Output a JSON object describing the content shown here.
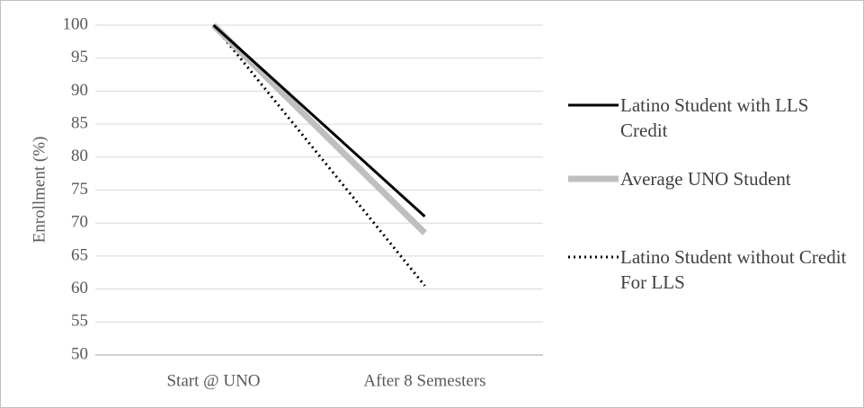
{
  "chart_data": {
    "type": "line",
    "y_label": "Enrollment (%)",
    "categories": [
      "Start @ UNO",
      "After 8 Semesters"
    ],
    "series": [
      {
        "name": "Latino Student with LLS Credit",
        "color": "#000000",
        "line_width": 3,
        "dashed": false,
        "values": [
          100,
          71
        ]
      },
      {
        "name": "Average UNO Student",
        "color": "#bfbfbf",
        "line_width": 7,
        "dashed": false,
        "values": [
          100,
          68.5
        ]
      },
      {
        "name": "Latino Student without Credit For LLS",
        "color": "#000000",
        "line_width": 3,
        "dashed": true,
        "values": [
          100,
          60.5
        ]
      }
    ],
    "ylim": [
      50,
      100
    ],
    "yticks": [
      50,
      55,
      60,
      65,
      70,
      75,
      80,
      85,
      90,
      95,
      100
    ],
    "grid": true,
    "legend": "right"
  }
}
